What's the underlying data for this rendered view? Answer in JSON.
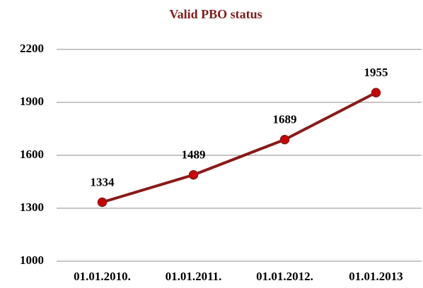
{
  "chart_data": {
    "type": "line",
    "title": "Valid PBO status",
    "categories": [
      "01.01.2010.",
      "01.01.2011.",
      "01.01.2012.",
      "01.01.2013"
    ],
    "values": [
      1334,
      1489,
      1689,
      1955
    ],
    "color": "#8b1a1a",
    "marker_color": "#cc0000",
    "ylim": [
      1000,
      2200
    ],
    "yticks": [
      1000,
      1300,
      1600,
      1900,
      2200
    ],
    "grid": true
  }
}
